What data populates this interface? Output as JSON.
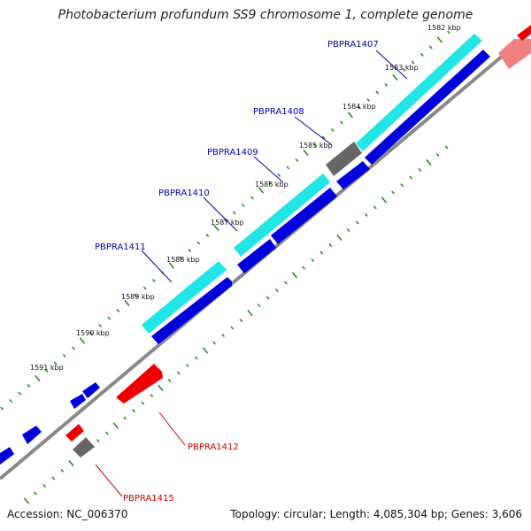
{
  "title": "Photobacterium profundum SS9 chromosome 1, complete genome",
  "footer": {
    "accession_label": "Accession:",
    "accession": "NC_006370",
    "topology_text": "Topology: circular; Length: 4,085,304 bp; Genes: 3,606"
  },
  "colors": {
    "orf_cyan": "#22e5e5",
    "cds_forward": "#0000dd",
    "cds_reverse": "#ee0000",
    "other": "#666666",
    "ticks": "#228b22",
    "backbone": "#888888",
    "label_forward": "#0000bb",
    "label_reverse": "#cc0000"
  },
  "ticks": [
    {
      "label": "1582 kbp"
    },
    {
      "label": "1583 kbp"
    },
    {
      "label": "1584 kbp"
    },
    {
      "label": "1585 kbp"
    },
    {
      "label": "1586 kbp"
    },
    {
      "label": "1587 kbp"
    },
    {
      "label": "1588 kbp"
    },
    {
      "label": "1589 kbp"
    },
    {
      "label": "1590 kbp"
    },
    {
      "label": "1591 kbp"
    }
  ],
  "gene_labels": [
    {
      "name": "PBPRA1407",
      "strand": "forward"
    },
    {
      "name": "PBPRA1408",
      "strand": "forward"
    },
    {
      "name": "PBPRA1409",
      "strand": "forward"
    },
    {
      "name": "PBPRA1410",
      "strand": "forward"
    },
    {
      "name": "PBPRA1411",
      "strand": "forward"
    },
    {
      "name": "PBPRA1412",
      "strand": "reverse"
    },
    {
      "name": "PBPRA1415",
      "strand": "reverse"
    }
  ]
}
